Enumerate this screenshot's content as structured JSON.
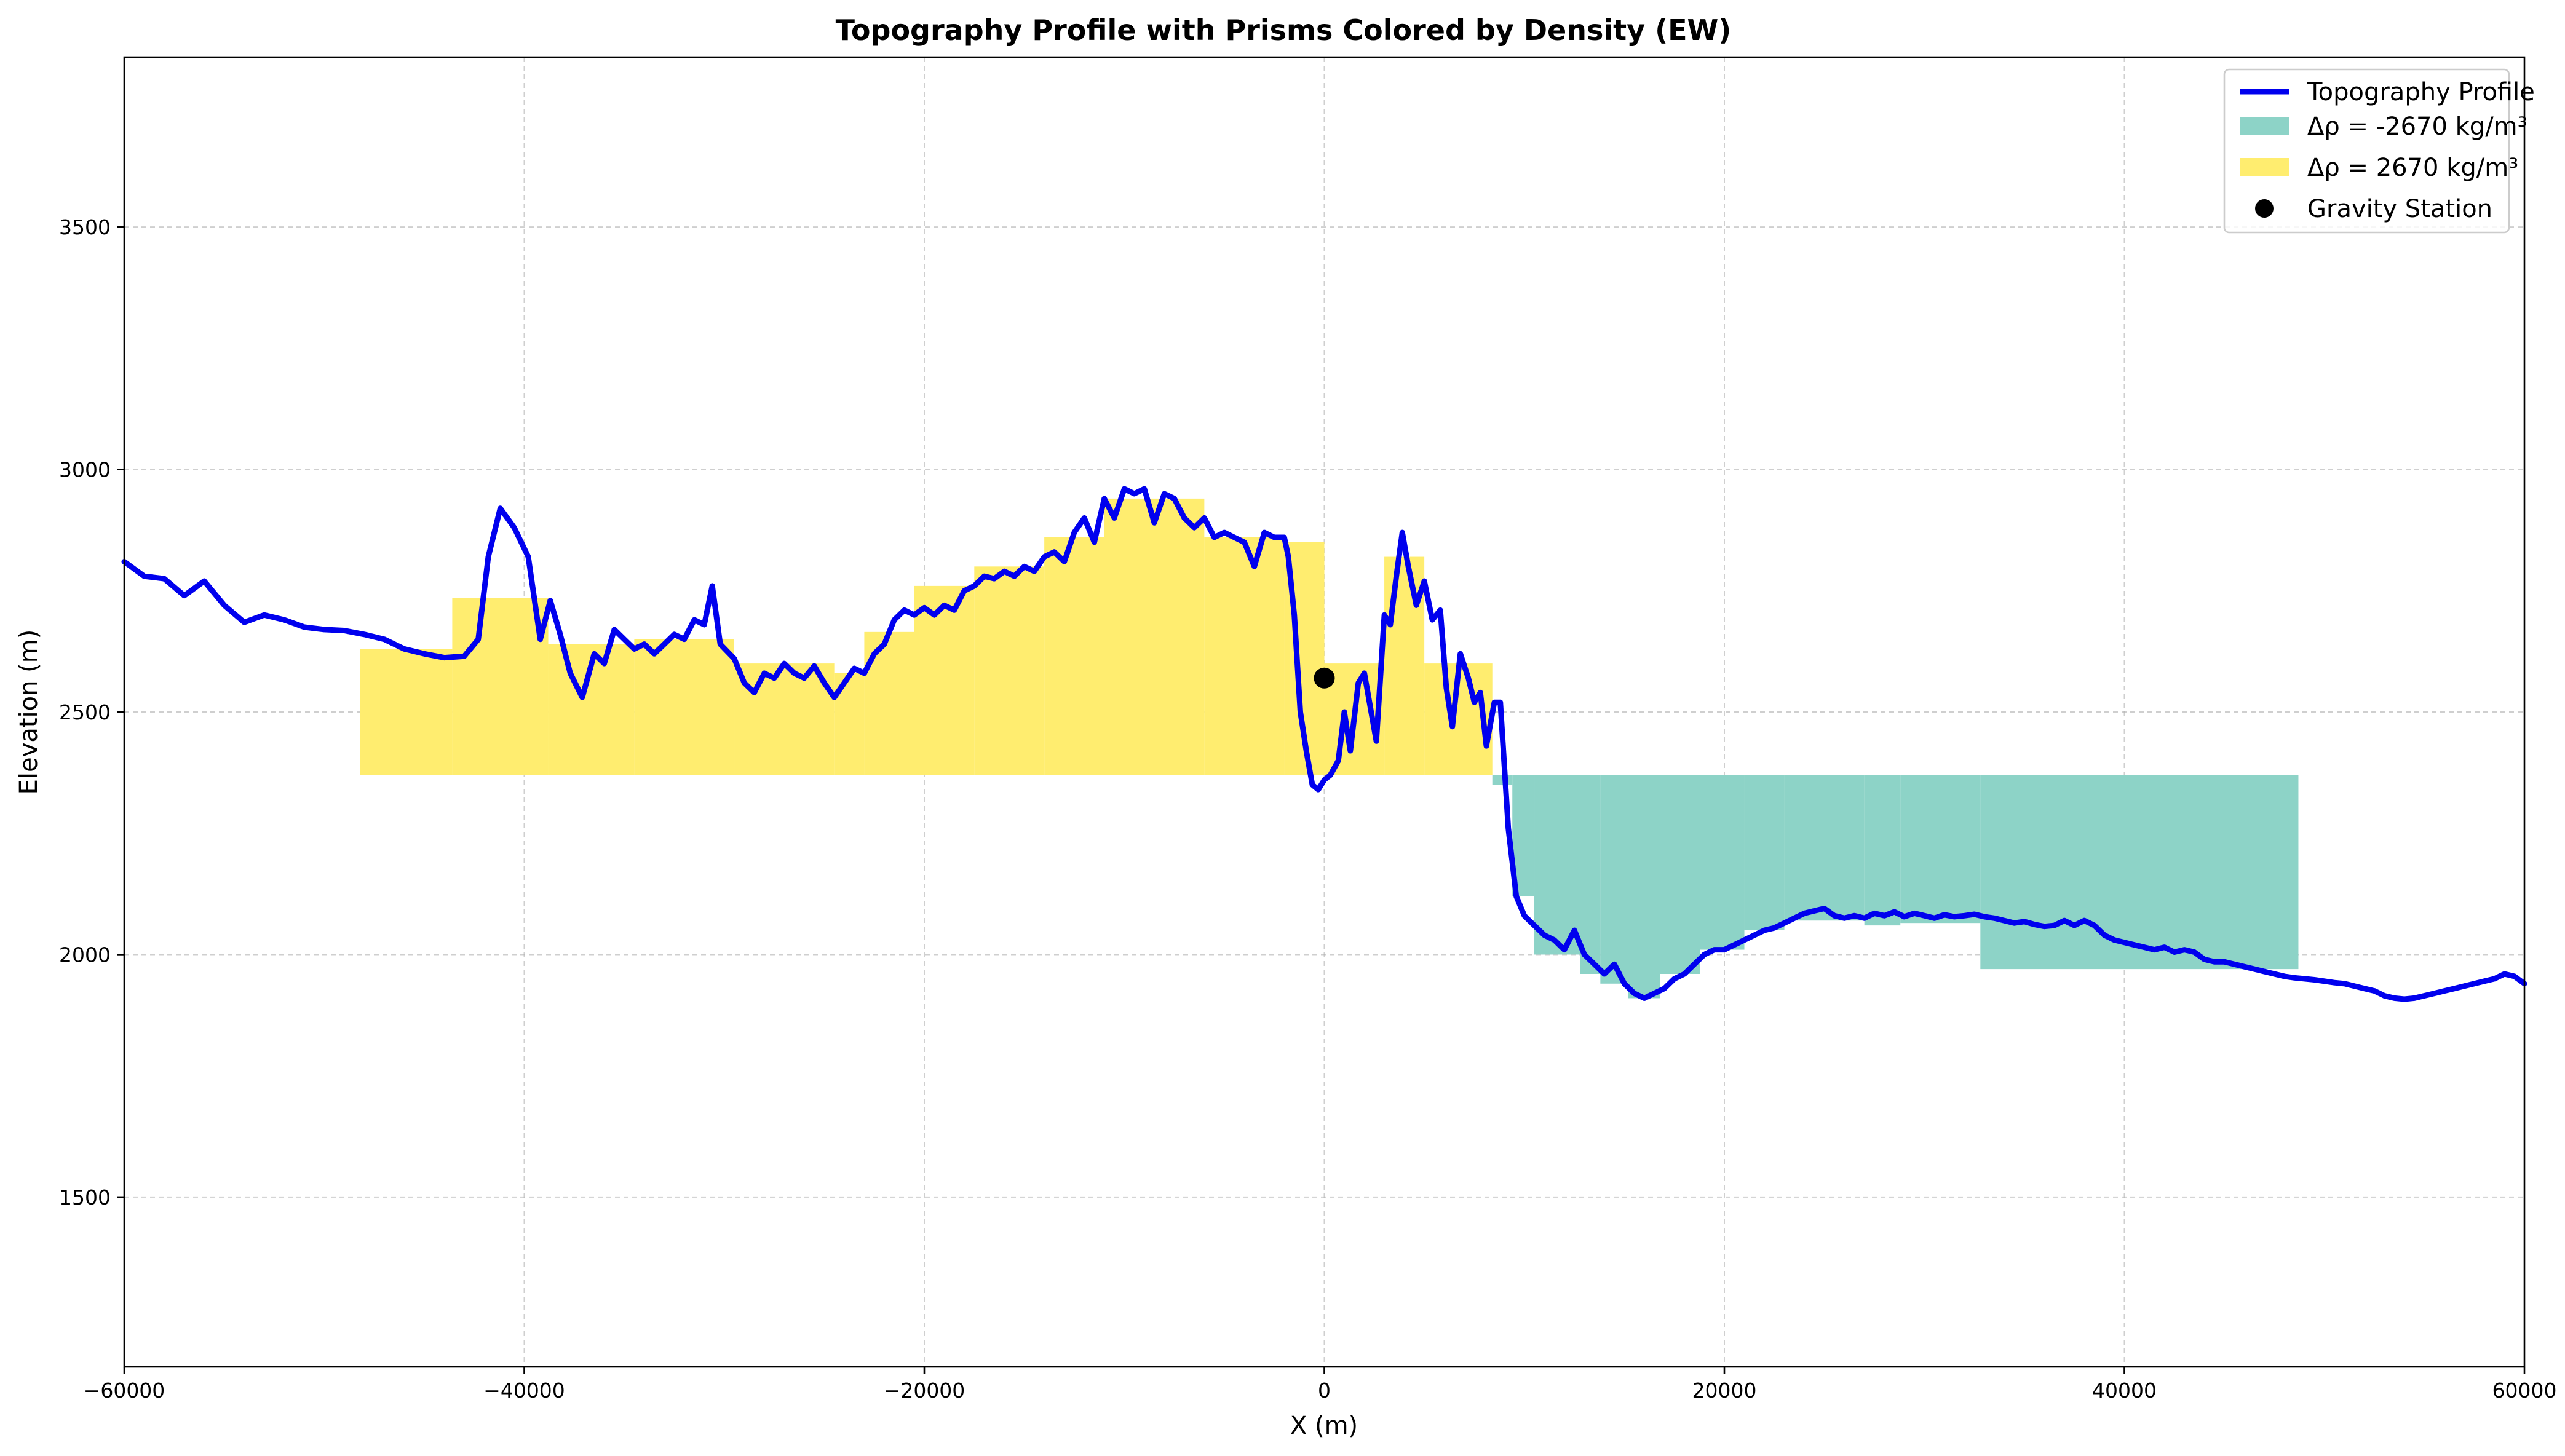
{
  "chart_data": {
    "type": "line",
    "title": "Topography Profile with Prisms Colored by Density (EW)",
    "xlabel": "X (m)",
    "ylabel": "Elevation (m)",
    "xlim": [
      -60000,
      60000
    ],
    "ylim": [
      1150,
      3850
    ],
    "grid": true,
    "legend_position": "top-right",
    "x_ticks": [
      -60000,
      -40000,
      -20000,
      0,
      20000,
      40000,
      60000
    ],
    "x_tick_labels": [
      "−60000",
      "−40000",
      "−20000",
      "0",
      "20000",
      "40000",
      "60000"
    ],
    "y_ticks": [
      1500,
      2000,
      2500,
      3000,
      3500
    ],
    "y_tick_labels": [
      "1500",
      "2000",
      "2500",
      "3000",
      "3500"
    ],
    "reference_elevation": 2370,
    "series": [
      {
        "name": "Topography Profile",
        "color": "#0000ee",
        "points": [
          [
            -60000,
            2810
          ],
          [
            -59000,
            2780
          ],
          [
            -58000,
            2775
          ],
          [
            -57000,
            2740
          ],
          [
            -56000,
            2770
          ],
          [
            -55000,
            2720
          ],
          [
            -54000,
            2685
          ],
          [
            -53000,
            2700
          ],
          [
            -52000,
            2690
          ],
          [
            -51000,
            2675
          ],
          [
            -50000,
            2670
          ],
          [
            -49000,
            2668
          ],
          [
            -48000,
            2660
          ],
          [
            -47000,
            2650
          ],
          [
            -46000,
            2630
          ],
          [
            -45000,
            2620
          ],
          [
            -44000,
            2612
          ],
          [
            -43000,
            2615
          ],
          [
            -42300,
            2650
          ],
          [
            -41800,
            2820
          ],
          [
            -41200,
            2920
          ],
          [
            -40500,
            2880
          ],
          [
            -39800,
            2820
          ],
          [
            -39200,
            2650
          ],
          [
            -38700,
            2730
          ],
          [
            -38200,
            2660
          ],
          [
            -37700,
            2580
          ],
          [
            -37100,
            2530
          ],
          [
            -36500,
            2620
          ],
          [
            -36000,
            2600
          ],
          [
            -35500,
            2670
          ],
          [
            -35000,
            2650
          ],
          [
            -34500,
            2630
          ],
          [
            -34000,
            2640
          ],
          [
            -33500,
            2620
          ],
          [
            -33000,
            2640
          ],
          [
            -32500,
            2660
          ],
          [
            -32000,
            2650
          ],
          [
            -31500,
            2690
          ],
          [
            -31000,
            2680
          ],
          [
            -30600,
            2760
          ],
          [
            -30200,
            2640
          ],
          [
            -29500,
            2610
          ],
          [
            -29000,
            2560
          ],
          [
            -28500,
            2540
          ],
          [
            -28000,
            2580
          ],
          [
            -27500,
            2570
          ],
          [
            -27000,
            2600
          ],
          [
            -26500,
            2580
          ],
          [
            -26000,
            2570
          ],
          [
            -25500,
            2595
          ],
          [
            -25000,
            2560
          ],
          [
            -24500,
            2530
          ],
          [
            -24000,
            2560
          ],
          [
            -23500,
            2590
          ],
          [
            -23000,
            2580
          ],
          [
            -22500,
            2620
          ],
          [
            -22000,
            2640
          ],
          [
            -21500,
            2690
          ],
          [
            -21000,
            2710
          ],
          [
            -20500,
            2700
          ],
          [
            -20000,
            2715
          ],
          [
            -19500,
            2700
          ],
          [
            -19000,
            2720
          ],
          [
            -18500,
            2710
          ],
          [
            -18000,
            2750
          ],
          [
            -17500,
            2760
          ],
          [
            -17000,
            2780
          ],
          [
            -16500,
            2775
          ],
          [
            -16000,
            2790
          ],
          [
            -15500,
            2780
          ],
          [
            -15000,
            2800
          ],
          [
            -14500,
            2790
          ],
          [
            -14000,
            2820
          ],
          [
            -13500,
            2830
          ],
          [
            -13000,
            2810
          ],
          [
            -12500,
            2870
          ],
          [
            -12000,
            2900
          ],
          [
            -11500,
            2850
          ],
          [
            -11000,
            2940
          ],
          [
            -10500,
            2900
          ],
          [
            -10000,
            2960
          ],
          [
            -9500,
            2950
          ],
          [
            -9000,
            2960
          ],
          [
            -8500,
            2890
          ],
          [
            -8000,
            2950
          ],
          [
            -7500,
            2940
          ],
          [
            -7000,
            2900
          ],
          [
            -6500,
            2880
          ],
          [
            -6000,
            2900
          ],
          [
            -5500,
            2860
          ],
          [
            -5000,
            2870
          ],
          [
            -4500,
            2860
          ],
          [
            -4000,
            2850
          ],
          [
            -3500,
            2800
          ],
          [
            -3000,
            2870
          ],
          [
            -2500,
            2860
          ],
          [
            -2000,
            2860
          ],
          [
            -1800,
            2820
          ],
          [
            -1500,
            2700
          ],
          [
            -1200,
            2500
          ],
          [
            -900,
            2420
          ],
          [
            -600,
            2350
          ],
          [
            -300,
            2340
          ],
          [
            0,
            2360
          ],
          [
            300,
            2370
          ],
          [
            700,
            2400
          ],
          [
            1000,
            2500
          ],
          [
            1300,
            2420
          ],
          [
            1700,
            2560
          ],
          [
            2000,
            2580
          ],
          [
            2300,
            2510
          ],
          [
            2600,
            2440
          ],
          [
            3000,
            2700
          ],
          [
            3300,
            2680
          ],
          [
            3600,
            2780
          ],
          [
            3900,
            2870
          ],
          [
            4200,
            2800
          ],
          [
            4600,
            2720
          ],
          [
            5000,
            2770
          ],
          [
            5400,
            2690
          ],
          [
            5800,
            2710
          ],
          [
            6100,
            2550
          ],
          [
            6400,
            2470
          ],
          [
            6800,
            2620
          ],
          [
            7200,
            2570
          ],
          [
            7500,
            2520
          ],
          [
            7800,
            2540
          ],
          [
            8100,
            2430
          ],
          [
            8500,
            2520
          ],
          [
            8800,
            2520
          ],
          [
            9200,
            2260
          ],
          [
            9600,
            2120
          ],
          [
            10000,
            2080
          ],
          [
            10500,
            2060
          ],
          [
            11000,
            2040
          ],
          [
            11500,
            2030
          ],
          [
            12000,
            2010
          ],
          [
            12500,
            2050
          ],
          [
            13000,
            2000
          ],
          [
            13500,
            1980
          ],
          [
            14000,
            1960
          ],
          [
            14500,
            1980
          ],
          [
            15000,
            1940
          ],
          [
            15500,
            1920
          ],
          [
            16000,
            1910
          ],
          [
            16500,
            1920
          ],
          [
            17000,
            1930
          ],
          [
            17500,
            1950
          ],
          [
            18000,
            1960
          ],
          [
            18500,
            1980
          ],
          [
            19000,
            2000
          ],
          [
            19500,
            2010
          ],
          [
            20000,
            2010
          ],
          [
            20500,
            2020
          ],
          [
            21000,
            2030
          ],
          [
            21500,
            2040
          ],
          [
            22000,
            2050
          ],
          [
            22500,
            2055
          ],
          [
            23000,
            2065
          ],
          [
            23500,
            2075
          ],
          [
            24000,
            2085
          ],
          [
            24500,
            2090
          ],
          [
            25000,
            2095
          ],
          [
            25500,
            2080
          ],
          [
            26000,
            2075
          ],
          [
            26500,
            2080
          ],
          [
            27000,
            2075
          ],
          [
            27500,
            2085
          ],
          [
            28000,
            2080
          ],
          [
            28500,
            2088
          ],
          [
            29000,
            2078
          ],
          [
            29500,
            2085
          ],
          [
            30000,
            2080
          ],
          [
            30500,
            2075
          ],
          [
            31000,
            2082
          ],
          [
            31500,
            2078
          ],
          [
            32000,
            2080
          ],
          [
            32500,
            2083
          ],
          [
            33000,
            2078
          ],
          [
            33500,
            2075
          ],
          [
            34000,
            2070
          ],
          [
            34500,
            2065
          ],
          [
            35000,
            2068
          ],
          [
            35500,
            2062
          ],
          [
            36000,
            2058
          ],
          [
            36500,
            2060
          ],
          [
            37000,
            2070
          ],
          [
            37500,
            2060
          ],
          [
            38000,
            2070
          ],
          [
            38500,
            2060
          ],
          [
            39000,
            2040
          ],
          [
            39500,
            2030
          ],
          [
            40000,
            2025
          ],
          [
            40500,
            2020
          ],
          [
            41000,
            2015
          ],
          [
            41500,
            2010
          ],
          [
            42000,
            2015
          ],
          [
            42500,
            2005
          ],
          [
            43000,
            2010
          ],
          [
            43500,
            2005
          ],
          [
            44000,
            1990
          ],
          [
            44500,
            1985
          ],
          [
            45000,
            1985
          ],
          [
            45500,
            1980
          ],
          [
            46000,
            1975
          ],
          [
            46500,
            1970
          ],
          [
            47000,
            1965
          ],
          [
            47500,
            1960
          ],
          [
            48000,
            1955
          ],
          [
            48500,
            1952
          ],
          [
            49000,
            1950
          ],
          [
            49500,
            1948
          ],
          [
            50000,
            1945
          ],
          [
            50500,
            1942
          ],
          [
            51000,
            1940
          ],
          [
            51500,
            1935
          ],
          [
            52000,
            1930
          ],
          [
            52500,
            1925
          ],
          [
            53000,
            1915
          ],
          [
            53500,
            1910
          ],
          [
            54000,
            1908
          ],
          [
            54500,
            1910
          ],
          [
            55000,
            1915
          ],
          [
            55500,
            1920
          ],
          [
            56000,
            1925
          ],
          [
            56500,
            1930
          ],
          [
            57000,
            1935
          ],
          [
            57500,
            1940
          ],
          [
            58000,
            1945
          ],
          [
            58500,
            1950
          ],
          [
            59000,
            1960
          ],
          [
            59500,
            1955
          ],
          [
            60000,
            1940
          ]
        ]
      },
      {
        "name": "Δρ = -2670 kg/m³",
        "color": "#8dd3c7",
        "prisms": [
          [
            8400,
            9400,
            2350,
            2370
          ],
          [
            9400,
            10500,
            2120,
            2370
          ],
          [
            10500,
            12800,
            2000,
            2370
          ],
          [
            12800,
            13800,
            1960,
            2370
          ],
          [
            13800,
            15200,
            1940,
            2370
          ],
          [
            15200,
            16800,
            1910,
            2370
          ],
          [
            16800,
            18800,
            1960,
            2370
          ],
          [
            18800,
            21000,
            2010,
            2370
          ],
          [
            21000,
            23000,
            2050,
            2370
          ],
          [
            23000,
            27000,
            2070,
            2370
          ],
          [
            27000,
            28800,
            2060,
            2370
          ],
          [
            28800,
            32800,
            2065,
            2370
          ],
          [
            32800,
            48700,
            1970,
            2370
          ]
        ]
      },
      {
        "name": "Δρ = 2670 kg/m³",
        "color": "#ffed6f",
        "prisms": [
          [
            -48200,
            -43600,
            2370,
            2630
          ],
          [
            -43600,
            -38800,
            2370,
            2735
          ],
          [
            -38800,
            -34500,
            2370,
            2640
          ],
          [
            -34500,
            -29500,
            2370,
            2650
          ],
          [
            -29500,
            -24500,
            2370,
            2600
          ],
          [
            -24500,
            -23000,
            2370,
            2580
          ],
          [
            -23000,
            -20500,
            2370,
            2665
          ],
          [
            -20500,
            -17500,
            2370,
            2760
          ],
          [
            -17500,
            -14000,
            2370,
            2800
          ],
          [
            -14000,
            -11000,
            2370,
            2860
          ],
          [
            -11000,
            -6000,
            2370,
            2940
          ],
          [
            -6000,
            -2000,
            2370,
            2860
          ],
          [
            -2000,
            0,
            2370,
            2850
          ],
          [
            0,
            3000,
            2370,
            2600
          ],
          [
            3000,
            5000,
            2370,
            2820
          ],
          [
            5000,
            8400,
            2370,
            2600
          ]
        ]
      },
      {
        "name": "Gravity Station",
        "color": "#000000",
        "points": [
          [
            0,
            2570
          ]
        ]
      }
    ]
  }
}
